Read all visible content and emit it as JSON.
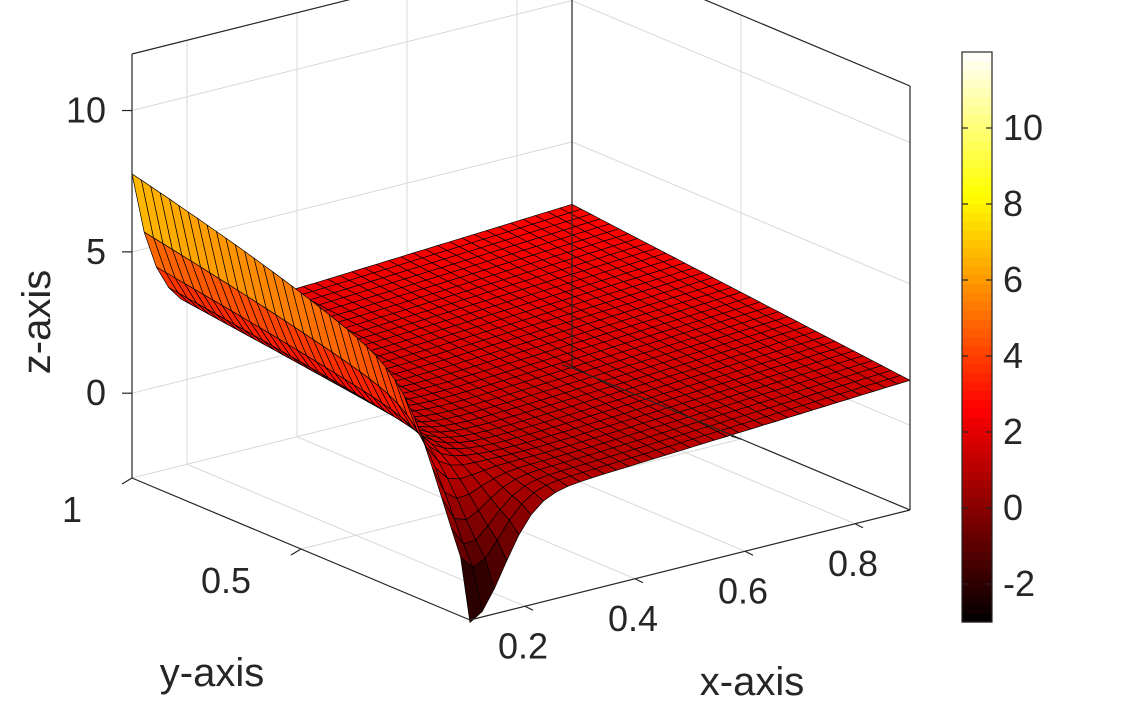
{
  "chart_data": {
    "type": "surface",
    "colormap": "hot",
    "colors": {
      "axis": "#262626",
      "grid": "#d9d9d9",
      "edge": "#000000",
      "background": "#ffffff"
    },
    "xlabel": "x-axis",
    "ylabel": "y-axis",
    "zlabel": "z-axis",
    "xlim": [
      0.1,
      0.9
    ],
    "ylim": [
      0,
      1
    ],
    "zlim": [
      -3,
      12
    ],
    "x_ticks": [
      0.2,
      0.4,
      0.6,
      0.8
    ],
    "y_ticks": [
      0.5,
      1
    ],
    "z_ticks": [
      0,
      5,
      10
    ],
    "x_tick_labels": [
      "0.2",
      "0.4",
      "0.6",
      "0.8"
    ],
    "y_tick_labels": [
      "0.5",
      "1"
    ],
    "z_tick_labels": [
      "0",
      "5",
      "10"
    ],
    "grid": true,
    "colorbar": {
      "limits": [
        -3,
        12
      ],
      "ticks": [
        -2,
        0,
        2,
        4,
        6,
        8,
        10
      ],
      "tick_labels": [
        "-2",
        "0",
        "2",
        "4",
        "6",
        "8",
        "10"
      ]
    },
    "surface_samples": [
      {
        "x": 0.1,
        "y": 1.0,
        "z": 8.1
      },
      {
        "x": 0.1,
        "y": 0.5,
        "z": 8.0
      },
      {
        "x": 0.1,
        "y": 0.0,
        "z": -2.8
      },
      {
        "x": 0.5,
        "y": 0.0,
        "z": 0.4
      },
      {
        "x": 0.9,
        "y": 0.0,
        "z": 1.0
      },
      {
        "x": 0.9,
        "y": 1.0,
        "z": 1.9
      }
    ]
  }
}
